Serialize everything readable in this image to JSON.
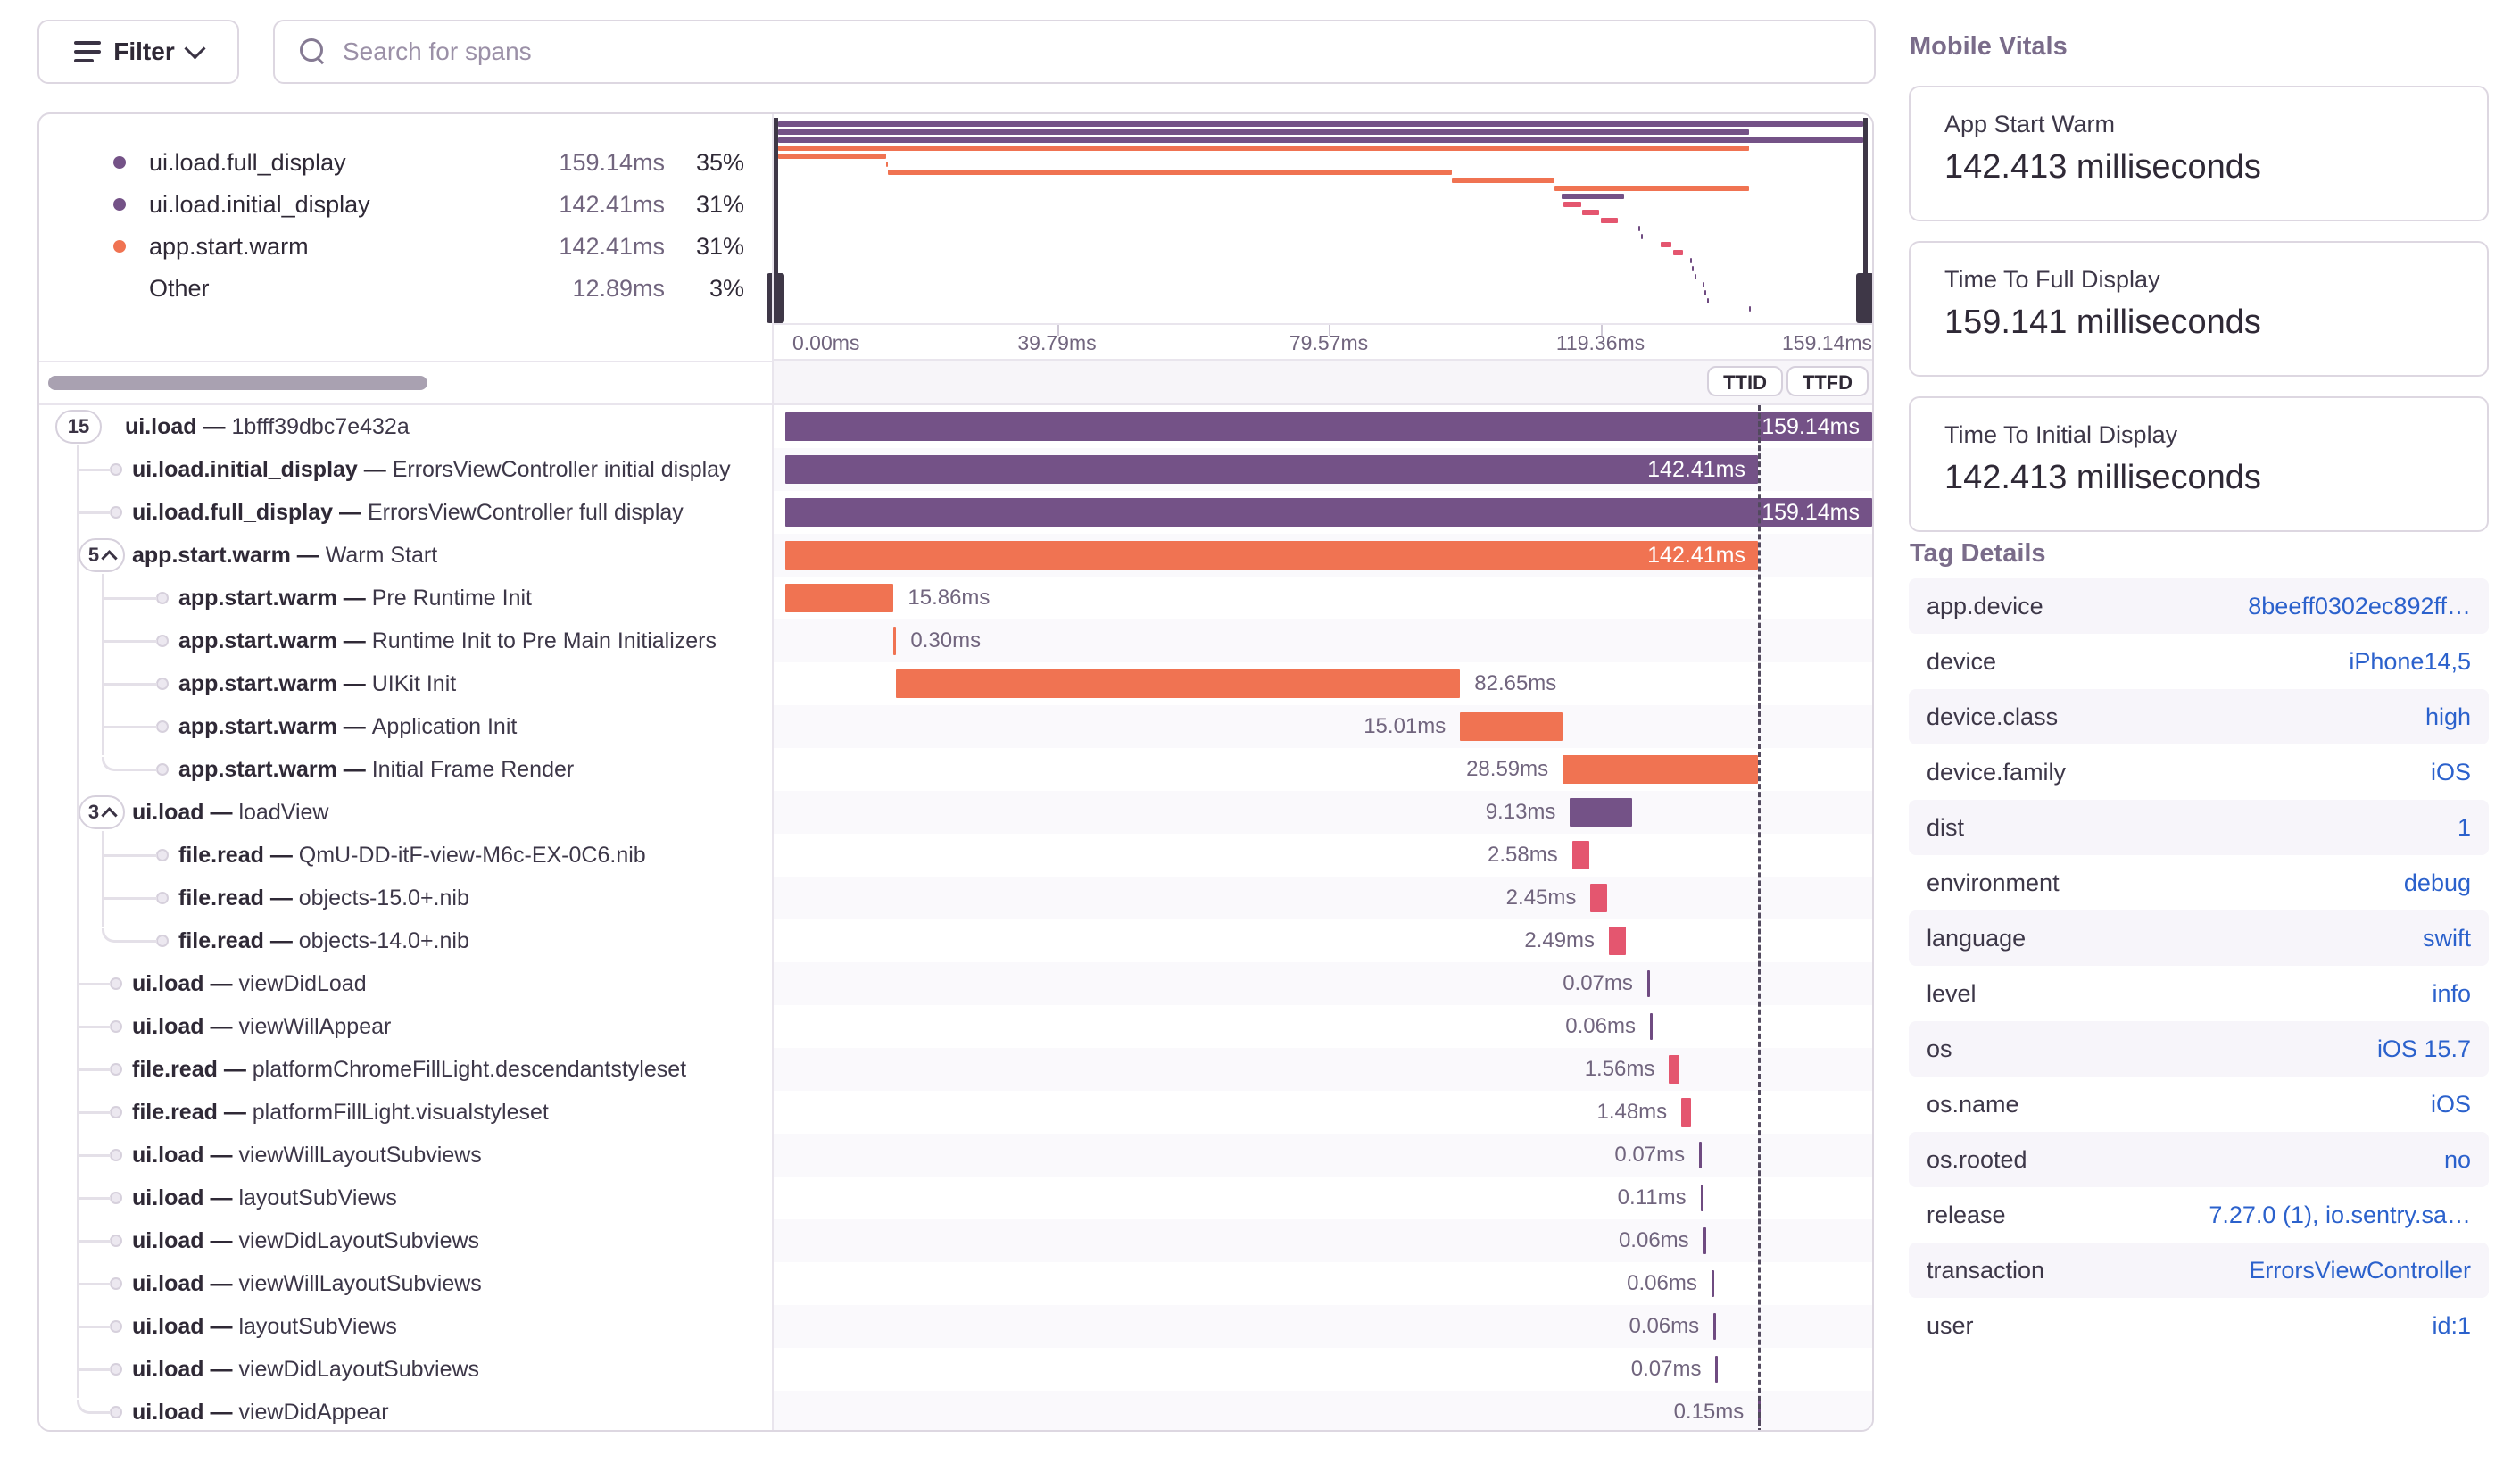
{
  "toolbar": {
    "filter_label": "Filter",
    "search_placeholder": "Search for spans"
  },
  "ui": {
    "separator": " — "
  },
  "colors": {
    "purple": "#745287",
    "orange": "#F07352",
    "pink": "#E4566F",
    "tick": "#6F4B81"
  },
  "legend": {
    "items": [
      {
        "name": "ui.load.full_display",
        "value": "159.14ms",
        "pct": "35%",
        "color": "#745287"
      },
      {
        "name": "ui.load.initial_display",
        "value": "142.41ms",
        "pct": "31%",
        "color": "#745287"
      },
      {
        "name": "app.start.warm",
        "value": "142.41ms",
        "pct": "31%",
        "color": "#F07352"
      },
      {
        "name": "Other",
        "value": "12.89ms",
        "pct": "3%",
        "color": null
      }
    ]
  },
  "timeline": {
    "total_ms": 159.14,
    "ttid_ms": 142.41,
    "axis_labels": [
      "0.00ms",
      "39.79ms",
      "79.57ms",
      "119.36ms",
      "159.14ms"
    ],
    "ttid_label": "TTID",
    "ttfd_label": "TTFD"
  },
  "spans": [
    {
      "op": "ui.load",
      "desc": "1bfff39dbc7e432a",
      "level": 0,
      "badge": "15",
      "badge_chevron": false,
      "start": 0,
      "dur": 159.14,
      "color": "purple",
      "label": "159.14ms",
      "label_pos": "inside"
    },
    {
      "op": "ui.load.initial_display",
      "desc": "ErrorsViewController initial display",
      "level": 1,
      "start": 0,
      "dur": 142.41,
      "color": "purple",
      "label": "142.41ms",
      "label_pos": "inside"
    },
    {
      "op": "ui.load.full_display",
      "desc": "ErrorsViewController full display",
      "level": 1,
      "start": 0,
      "dur": 159.14,
      "color": "purple",
      "label": "159.14ms",
      "label_pos": "inside"
    },
    {
      "op": "app.start.warm",
      "desc": "Warm Start",
      "level": 1,
      "badge": "5",
      "badge_chevron": true,
      "start": 0,
      "dur": 142.41,
      "color": "orange",
      "label": "142.41ms",
      "label_pos": "inside"
    },
    {
      "op": "app.start.warm",
      "desc": "Pre Runtime Init",
      "level": 2,
      "start": 0,
      "dur": 15.86,
      "color": "orange",
      "label": "15.86ms",
      "label_pos": "right"
    },
    {
      "op": "app.start.warm",
      "desc": "Runtime Init to Pre Main Initializers",
      "level": 2,
      "start": 15.86,
      "dur": 0.3,
      "color": "orange",
      "label": "0.30ms",
      "label_pos": "right"
    },
    {
      "op": "app.start.warm",
      "desc": "UIKit Init",
      "level": 2,
      "start": 16.16,
      "dur": 82.65,
      "color": "orange",
      "label": "82.65ms",
      "label_pos": "right"
    },
    {
      "op": "app.start.warm",
      "desc": "Application Init",
      "level": 2,
      "start": 98.81,
      "dur": 15.01,
      "color": "orange",
      "label": "15.01ms",
      "label_pos": "left"
    },
    {
      "op": "app.start.warm",
      "desc": "Initial Frame Render",
      "level": 2,
      "start": 113.82,
      "dur": 28.59,
      "color": "orange",
      "label": "28.59ms",
      "label_pos": "left"
    },
    {
      "op": "ui.load",
      "desc": "loadView",
      "level": 1,
      "badge": "3",
      "badge_chevron": true,
      "start": 114.9,
      "dur": 9.13,
      "color": "purple",
      "label": "9.13ms",
      "label_pos": "left"
    },
    {
      "op": "file.read",
      "desc": "QmU-DD-itF-view-M6c-EX-0C6.nib",
      "level": 2,
      "start": 115.2,
      "dur": 2.58,
      "color": "pink",
      "label": "2.58ms",
      "label_pos": "left"
    },
    {
      "op": "file.read",
      "desc": "objects-15.0+.nib",
      "level": 2,
      "start": 117.9,
      "dur": 2.45,
      "color": "pink",
      "label": "2.45ms",
      "label_pos": "left"
    },
    {
      "op": "file.read",
      "desc": "objects-14.0+.nib",
      "level": 2,
      "start": 120.6,
      "dur": 2.49,
      "color": "pink",
      "label": "2.49ms",
      "label_pos": "left"
    },
    {
      "op": "ui.load",
      "desc": "viewDidLoad",
      "level": 1,
      "start": 126.2,
      "dur": 0.07,
      "color": "tick",
      "label": "0.07ms",
      "label_pos": "left"
    },
    {
      "op": "ui.load",
      "desc": "viewWillAppear",
      "level": 1,
      "start": 126.6,
      "dur": 0.06,
      "color": "tick",
      "label": "0.06ms",
      "label_pos": "left"
    },
    {
      "op": "file.read",
      "desc": "platformChromeFillLight.descendantstyleset",
      "level": 1,
      "start": 129.4,
      "dur": 1.56,
      "color": "pink",
      "label": "1.56ms",
      "label_pos": "left"
    },
    {
      "op": "file.read",
      "desc": "platformFillLight.visualstyleset",
      "level": 1,
      "start": 131.2,
      "dur": 1.48,
      "color": "pink",
      "label": "1.48ms",
      "label_pos": "left"
    },
    {
      "op": "ui.load",
      "desc": "viewWillLayoutSubviews",
      "level": 1,
      "start": 133.8,
      "dur": 0.07,
      "color": "tick",
      "label": "0.07ms",
      "label_pos": "left"
    },
    {
      "op": "ui.load",
      "desc": "layoutSubViews",
      "level": 1,
      "start": 134.0,
      "dur": 0.11,
      "color": "tick",
      "label": "0.11ms",
      "label_pos": "left"
    },
    {
      "op": "ui.load",
      "desc": "viewDidLayoutSubviews",
      "level": 1,
      "start": 134.4,
      "dur": 0.06,
      "color": "tick",
      "label": "0.06ms",
      "label_pos": "left"
    },
    {
      "op": "ui.load",
      "desc": "viewWillLayoutSubviews",
      "level": 1,
      "start": 135.6,
      "dur": 0.06,
      "color": "tick",
      "label": "0.06ms",
      "label_pos": "left"
    },
    {
      "op": "ui.load",
      "desc": "layoutSubViews",
      "level": 1,
      "start": 135.9,
      "dur": 0.06,
      "color": "tick",
      "label": "0.06ms",
      "label_pos": "left"
    },
    {
      "op": "ui.load",
      "desc": "viewDidLayoutSubviews",
      "level": 1,
      "start": 136.2,
      "dur": 0.07,
      "color": "tick",
      "label": "0.07ms",
      "label_pos": "left"
    },
    {
      "op": "ui.load",
      "desc": "viewDidAppear",
      "level": 1,
      "start": 142.45,
      "dur": 0.15,
      "color": "tick",
      "label": "0.15ms",
      "label_pos": "left"
    }
  ],
  "vitals": {
    "title": "Mobile Vitals",
    "cards": [
      {
        "label": "App Start Warm",
        "value": "142.413 milliseconds"
      },
      {
        "label": "Time To Full Display",
        "value": "159.141 milliseconds"
      },
      {
        "label": "Time To Initial Display",
        "value": "142.413 milliseconds"
      }
    ]
  },
  "tags": {
    "title": "Tag Details",
    "rows": [
      {
        "key": "app.device",
        "value": "8beeff0302ec892ff…"
      },
      {
        "key": "device",
        "value": "iPhone14,5"
      },
      {
        "key": "device.class",
        "value": "high"
      },
      {
        "key": "device.family",
        "value": "iOS"
      },
      {
        "key": "dist",
        "value": "1"
      },
      {
        "key": "environment",
        "value": "debug"
      },
      {
        "key": "language",
        "value": "swift"
      },
      {
        "key": "level",
        "value": "info"
      },
      {
        "key": "os",
        "value": "iOS 15.7"
      },
      {
        "key": "os.name",
        "value": "iOS"
      },
      {
        "key": "os.rooted",
        "value": "no"
      },
      {
        "key": "release",
        "value": "7.27.0 (1), io.sentry.sa…"
      },
      {
        "key": "transaction",
        "value": "ErrorsViewController"
      },
      {
        "key": "user",
        "value": "id:1"
      }
    ]
  }
}
